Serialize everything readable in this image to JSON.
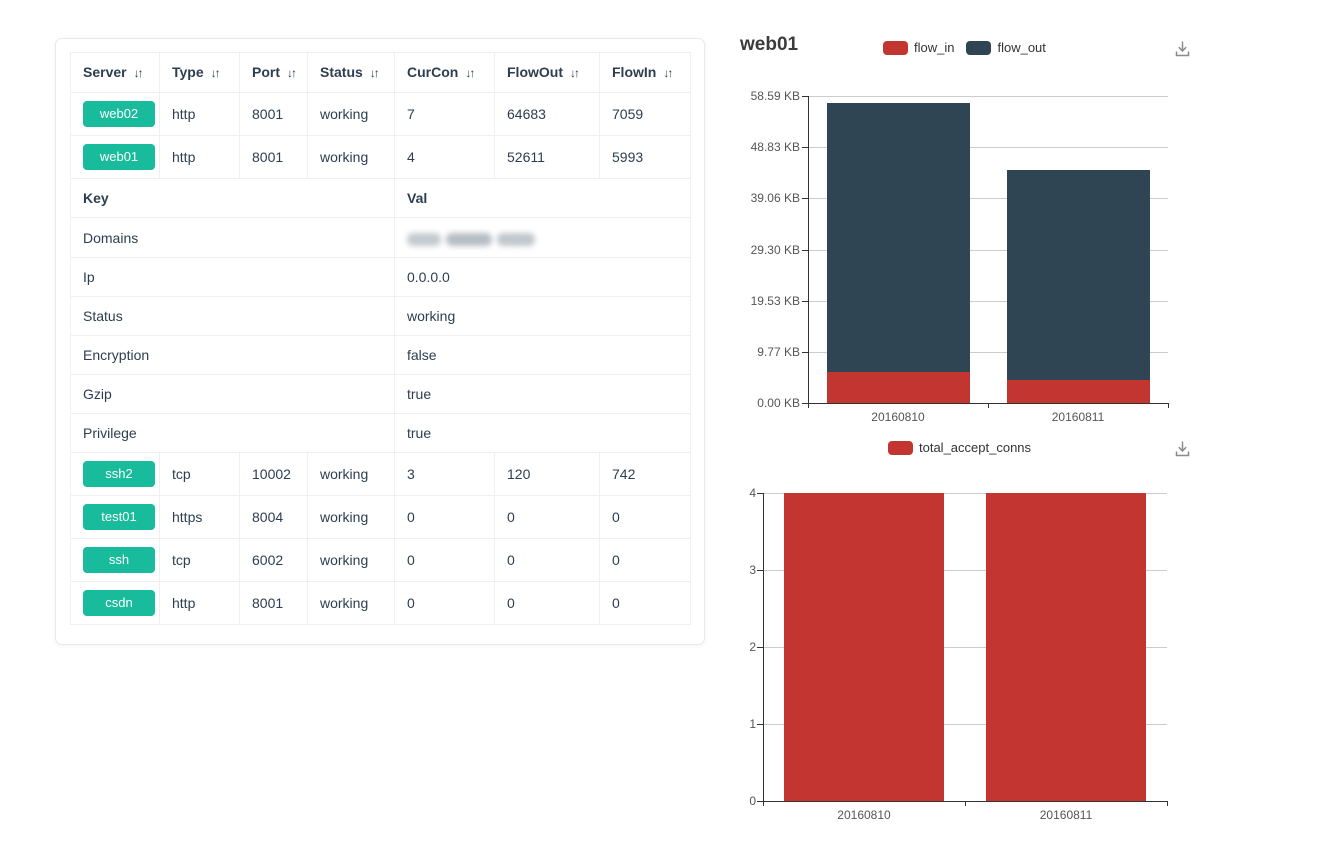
{
  "icons": {
    "sort_glyph": "↓↑",
    "download_icon": "arrow-into-tray"
  },
  "colors": {
    "badge_green": "#18bc9c",
    "flow_in_red": "#c23531",
    "flow_out_dark": "#2f4554",
    "table_text": "#2c3e50"
  },
  "table": {
    "columns": [
      "Server",
      "Type",
      "Port",
      "Status",
      "CurCon",
      "FlowOut",
      "FlowIn"
    ],
    "rows_top": [
      {
        "server": "web02",
        "type": "http",
        "port": "8001",
        "status": "working",
        "curcon": "7",
        "flowout": "64683",
        "flowin": "7059"
      },
      {
        "server": "web01",
        "type": "http",
        "port": "8001",
        "status": "working",
        "curcon": "4",
        "flowout": "52611",
        "flowin": "5993"
      }
    ],
    "kv": {
      "key_header": "Key",
      "val_header": "Val",
      "rows": [
        {
          "key": "Domains",
          "value": "",
          "redacted": true
        },
        {
          "key": "Ip",
          "value": "0.0.0.0"
        },
        {
          "key": "Status",
          "value": "working"
        },
        {
          "key": "Encryption",
          "value": "false"
        },
        {
          "key": "Gzip",
          "value": "true"
        },
        {
          "key": "Privilege",
          "value": "true"
        }
      ]
    },
    "rows_bottom": [
      {
        "server": "ssh2",
        "type": "tcp",
        "port": "10002",
        "status": "working",
        "curcon": "3",
        "flowout": "120",
        "flowin": "742"
      },
      {
        "server": "test01",
        "type": "https",
        "port": "8004",
        "status": "working",
        "curcon": "0",
        "flowout": "0",
        "flowin": "0"
      },
      {
        "server": "ssh",
        "type": "tcp",
        "port": "6002",
        "status": "working",
        "curcon": "0",
        "flowout": "0",
        "flowin": "0"
      },
      {
        "server": "csdn",
        "type": "http",
        "port": "8001",
        "status": "working",
        "curcon": "0",
        "flowout": "0",
        "flowin": "0"
      }
    ]
  },
  "chart_data": [
    {
      "type": "bar",
      "stacked": true,
      "title": "web01",
      "categories": [
        "20160810",
        "20160811"
      ],
      "series": [
        {
          "name": "flow_in",
          "color": "#c23531",
          "values_kb": [
            5.85,
            4.4
          ]
        },
        {
          "name": "flow_out",
          "color": "#2f4554",
          "values_kb": [
            51.4,
            40.0
          ]
        }
      ],
      "ylim_kb": [
        0,
        58.59
      ],
      "ytick_labels": [
        "58.59 KB",
        "48.83 KB",
        "39.06 KB",
        "29.30 KB",
        "19.53 KB",
        "9.77 KB",
        "0.00 KB"
      ],
      "xlabel": "",
      "ylabel": "",
      "legend_position": "top",
      "grid": true
    },
    {
      "type": "bar",
      "stacked": false,
      "title": "",
      "categories": [
        "20160810",
        "20160811"
      ],
      "series": [
        {
          "name": "total_accept_conns",
          "color": "#c23531",
          "values": [
            4,
            4
          ]
        }
      ],
      "ylim": [
        0,
        4
      ],
      "ytick_labels": [
        "4",
        "3",
        "2",
        "1",
        "0"
      ],
      "xlabel": "",
      "ylabel": "",
      "legend_position": "top",
      "grid": true
    }
  ]
}
